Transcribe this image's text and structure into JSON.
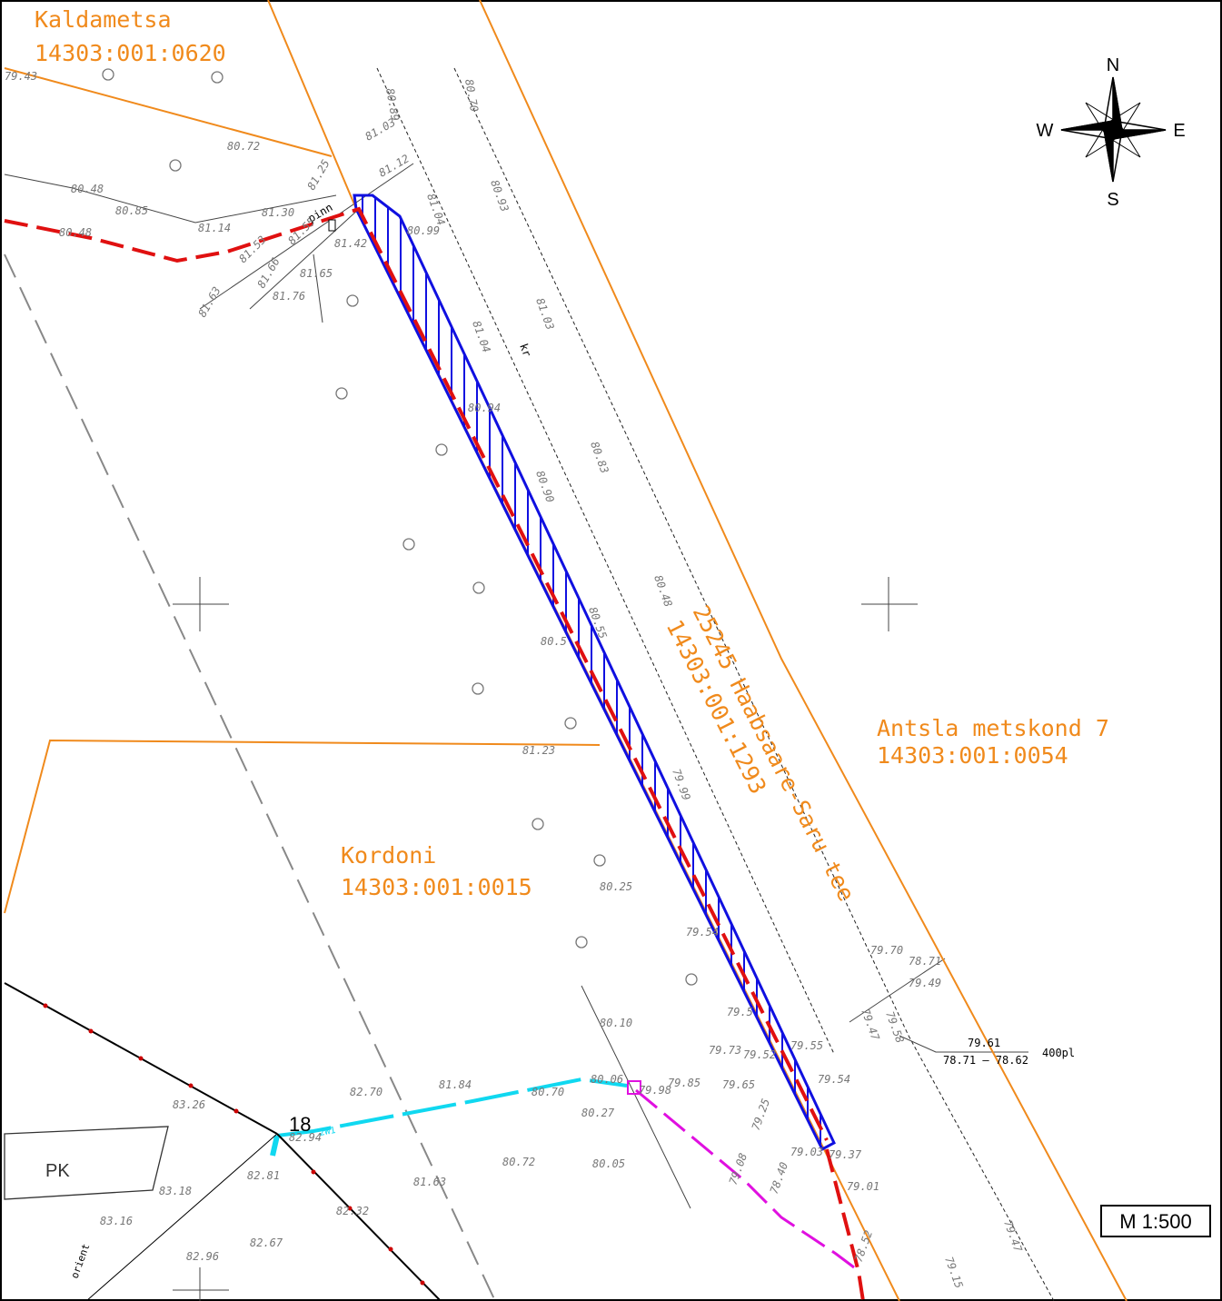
{
  "parcels": [
    {
      "name": "Kaldametsa",
      "code": "14303:001:0620"
    },
    {
      "name": "Kordoni",
      "code": "14303:001:0015"
    },
    {
      "name": "Antsla metskond 7",
      "code": "14303:001:0054"
    },
    {
      "name": "25245 Haabsaare-Saru tee",
      "code": "14303:001:1293"
    }
  ],
  "compass": {
    "north": "N",
    "east": "E",
    "south": "S",
    "west": "W"
  },
  "scale": "M 1:500",
  "labels": {
    "post": "pinn",
    "ditch": "kr",
    "building": "PK",
    "orient": "orient",
    "pole": "18",
    "culvert": "400pl",
    "cable": "2W1"
  },
  "culvert_levels": {
    "top": "79.61",
    "bottom": "78.71 – 78.62"
  },
  "elevations": [
    "79.43",
    "80.72",
    "80.48",
    "80.85",
    "81.14",
    "81.30",
    "80.48",
    "81.25",
    "81.12",
    "81.03",
    "80.89",
    "80.70",
    "81.04",
    "80.99",
    "81.42",
    "81.55",
    "81.53",
    "81.65",
    "81.66",
    "81.76",
    "81.63",
    "80.93",
    "81.03",
    "81.04",
    "80.94",
    "80.83",
    "80.90",
    "80.48",
    "80.55",
    "80.5",
    "81.23",
    "79.99",
    "80.25",
    "79.54",
    "79.70",
    "78.71",
    "79.49",
    "79.5",
    "80.10",
    "79.73",
    "79.52",
    "79.65",
    "79.85",
    "79.55",
    "79.54",
    "80.06",
    "80.70",
    "79.98",
    "80.27",
    "81.84",
    "82.70",
    "83.26",
    "82.94",
    "82.81",
    "81.63",
    "80.72",
    "80.05",
    "83.18",
    "82.32",
    "83.16",
    "82.67",
    "82.96",
    "79.03",
    "79.37",
    "79.01",
    "79.25",
    "79.08",
    "78.40",
    "78.52",
    "79.47",
    "79.15",
    "79.47",
    "79.58"
  ]
}
